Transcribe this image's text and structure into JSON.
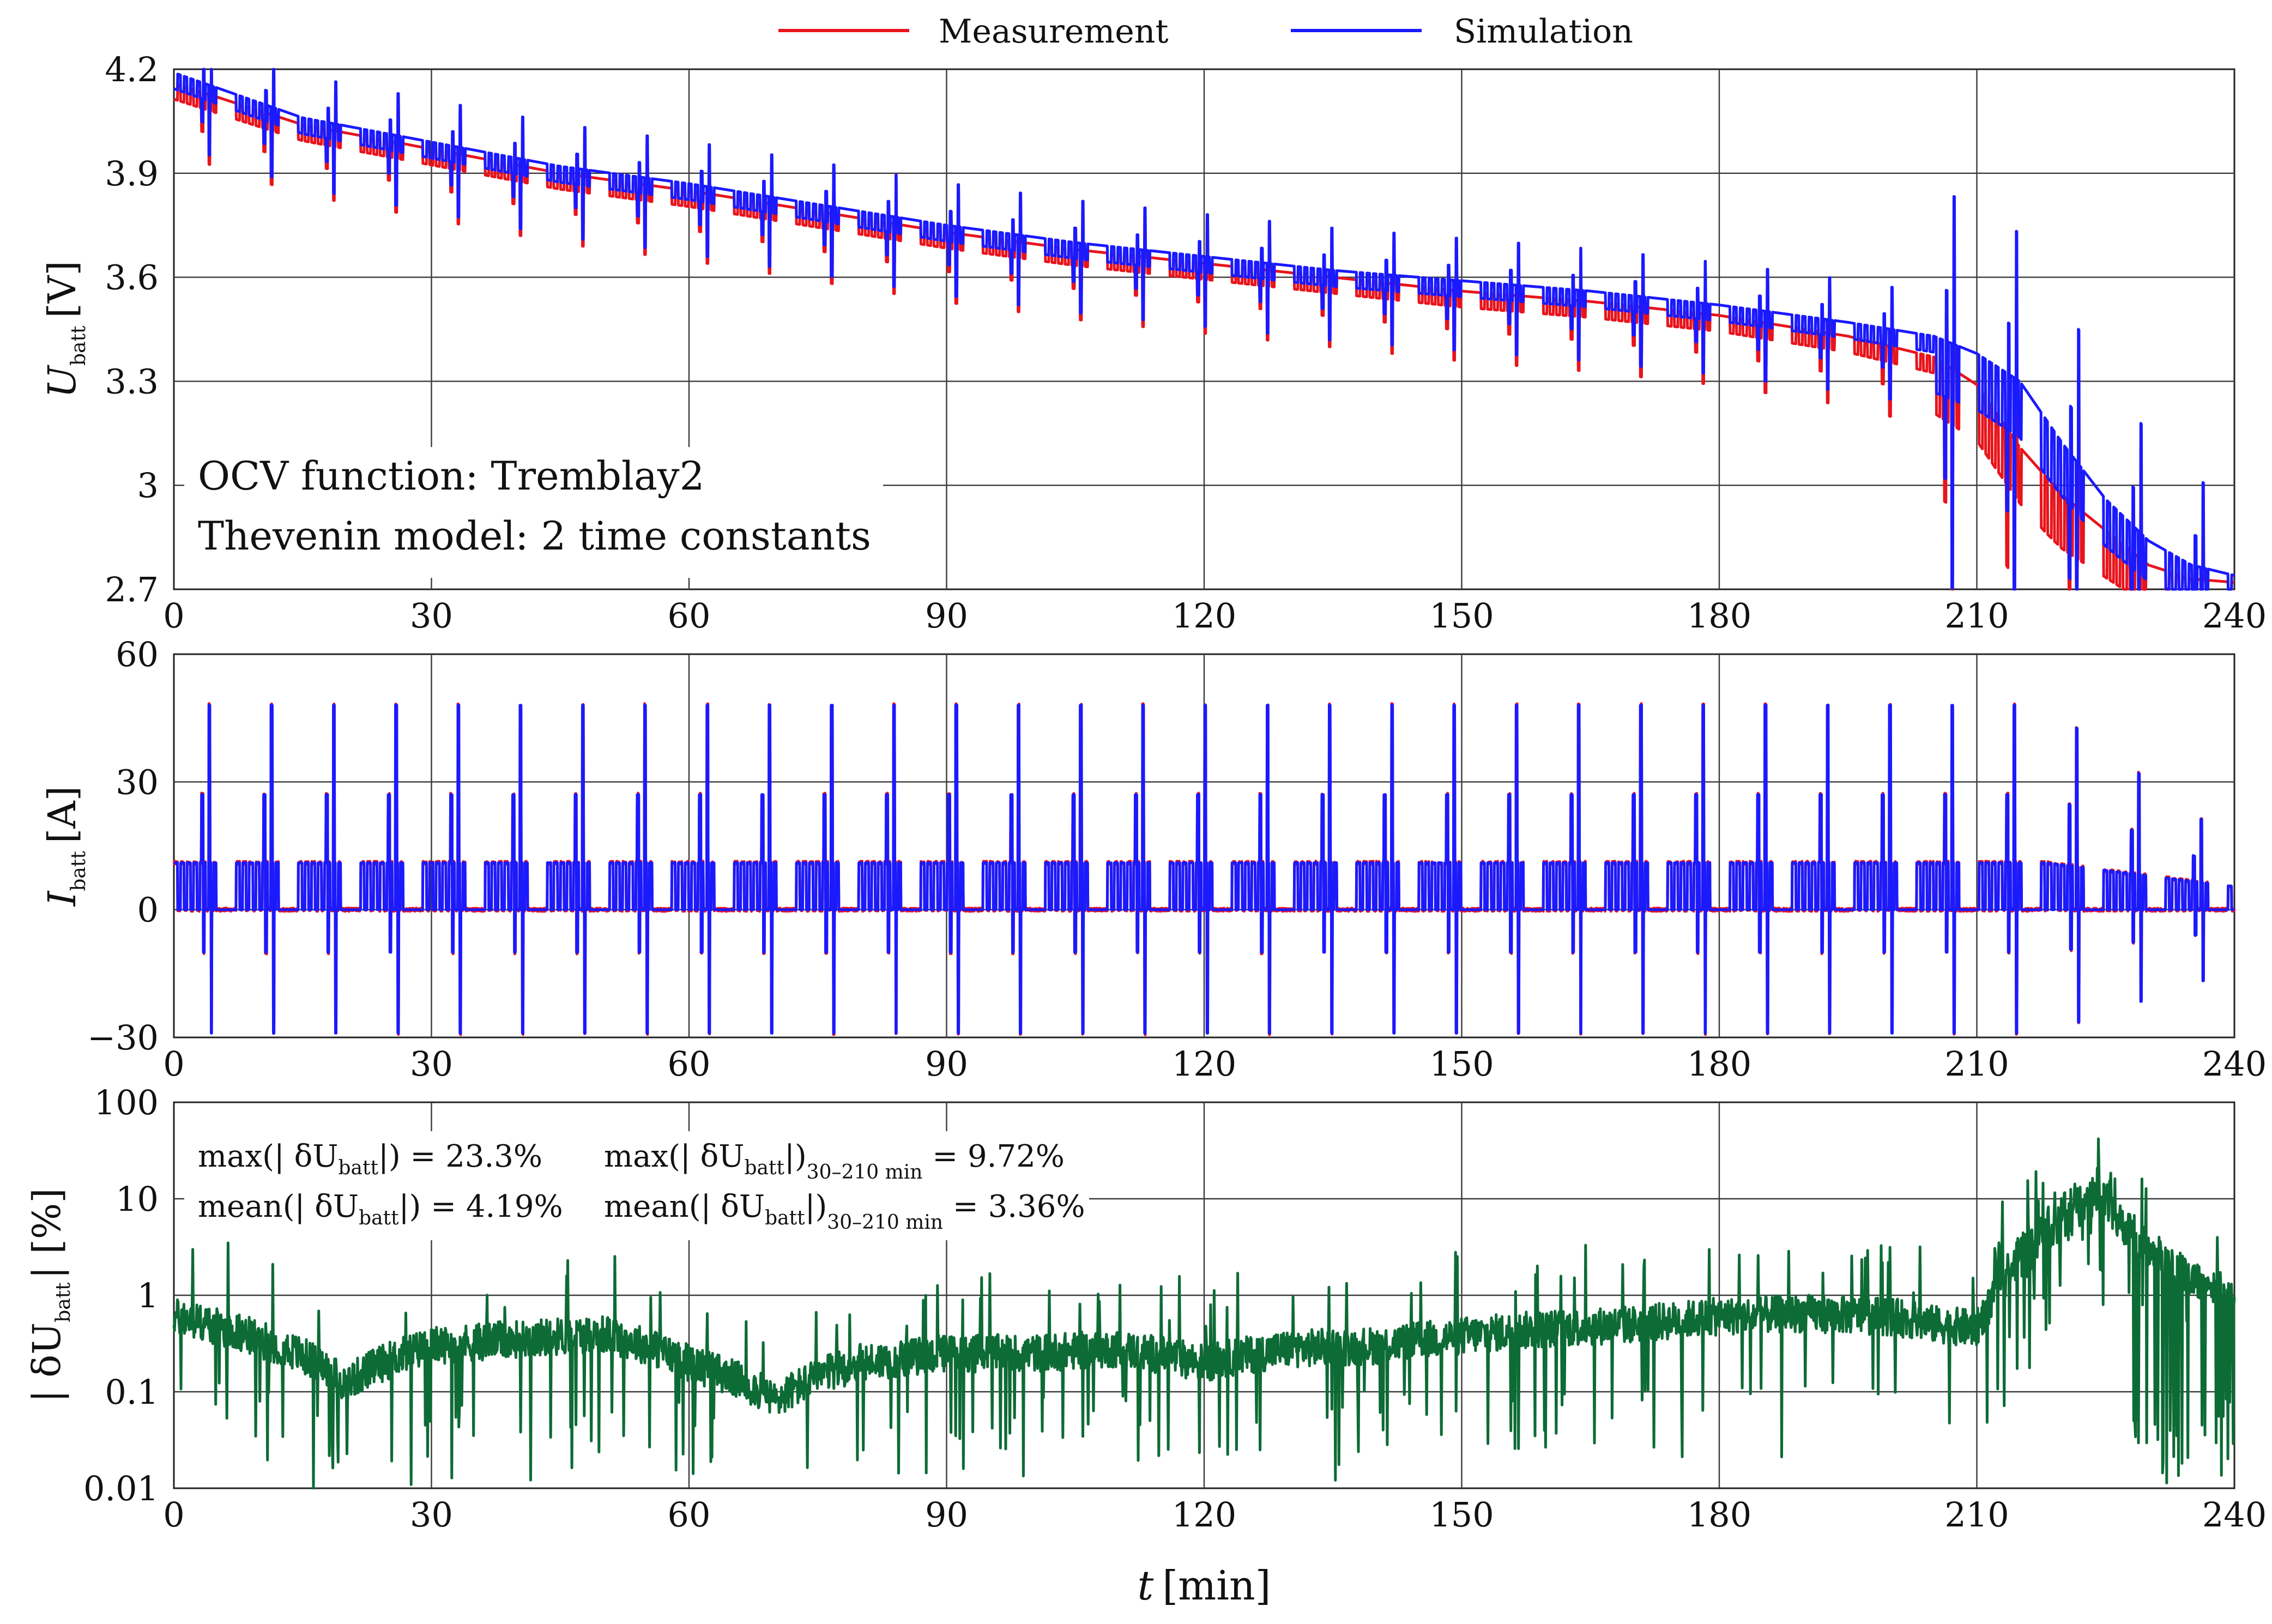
{
  "chart_data": [
    {
      "type": "line",
      "id": "voltage",
      "ylabel": "U",
      "ylabel_sub": "batt",
      "ylabel_unit": "[V]",
      "xlim": [
        0,
        240
      ],
      "ylim": [
        2.7,
        4.2
      ],
      "xticks": [
        0,
        30,
        60,
        90,
        120,
        150,
        180,
        210,
        240
      ],
      "yticks": [
        2.7,
        3,
        3.3,
        3.6,
        3.9,
        4.2
      ],
      "grid": true,
      "legend_position": "top-center",
      "annotations": [
        "OCV function: Tremblay2",
        "Thevenin model: 2 time constants"
      ],
      "series": [
        {
          "name": "Measurement",
          "color": "#e8141c",
          "x": [
            0,
            15,
            30,
            45,
            60,
            75,
            90,
            105,
            120,
            135,
            150,
            165,
            180,
            195,
            205,
            210,
            215,
            220,
            225,
            230,
            235,
            240
          ],
          "values": [
            4.17,
            4.05,
            3.98,
            3.91,
            3.86,
            3.8,
            3.74,
            3.69,
            3.65,
            3.61,
            3.57,
            3.54,
            3.5,
            3.44,
            3.38,
            3.3,
            3.12,
            2.98,
            2.88,
            2.78,
            2.74,
            2.73
          ]
        },
        {
          "name": "Simulation",
          "color": "#1a1aff",
          "x": [
            0,
            15,
            30,
            45,
            60,
            75,
            90,
            105,
            120,
            135,
            150,
            165,
            180,
            195,
            205,
            210,
            215,
            220,
            225,
            230,
            235,
            240
          ],
          "values": [
            4.19,
            4.06,
            3.99,
            3.92,
            3.87,
            3.81,
            3.75,
            3.7,
            3.66,
            3.62,
            3.59,
            3.56,
            3.52,
            3.47,
            3.43,
            3.38,
            3.3,
            3.12,
            2.96,
            2.84,
            2.77,
            2.74
          ]
        }
      ]
    },
    {
      "type": "line",
      "id": "current",
      "ylabel": "I",
      "ylabel_sub": "batt",
      "ylabel_unit": "[A]",
      "xlim": [
        0,
        240
      ],
      "ylim": [
        -30,
        60
      ],
      "xticks": [
        0,
        30,
        60,
        90,
        120,
        150,
        180,
        210,
        240
      ],
      "yticks": [
        -30,
        0,
        30,
        60
      ],
      "grid": true,
      "cycle_period_min": 7.25,
      "pulse_levels_A": {
        "base": 0,
        "low": 11,
        "peak_mid": 27,
        "peak_high": 48,
        "regen": -10,
        "regen_deep": -29
      },
      "series": [
        {
          "name": "Measurement",
          "color": "#e8141c"
        },
        {
          "name": "Simulation",
          "color": "#1a1aff"
        }
      ]
    },
    {
      "type": "line",
      "id": "error",
      "ylabel": "| δU",
      "ylabel_sub": "batt",
      "ylabel_unit": "| [%]",
      "xlabel": "t",
      "xlabel_unit": "[min]",
      "yscale": "log",
      "xlim": [
        0,
        240
      ],
      "ylim": [
        0.01,
        100
      ],
      "xticks": [
        0,
        30,
        60,
        90,
        120,
        150,
        180,
        210,
        240
      ],
      "yticks": [
        0.01,
        0.1,
        1,
        10,
        100
      ],
      "yticklabels": [
        "0.01",
        "0.1",
        "1",
        "10",
        "100"
      ],
      "grid": true,
      "stats": {
        "max_all": {
          "prefix": "max(| δU",
          "sub": "batt",
          "suffix": "|) = 23.3%"
        },
        "max_window": {
          "prefix": "max(| δU",
          "sub": "batt",
          "mid": "|)",
          "sub2": "30–210 min",
          "suffix": " = 9.72%"
        },
        "mean_all": {
          "prefix": "mean(| δU",
          "sub": "batt",
          "suffix": "|) = 4.19%"
        },
        "mean_window": {
          "prefix": "mean(| δU",
          "sub": "batt",
          "mid": "|)",
          "sub2": "30–210 min",
          "suffix": " = 3.36%"
        }
      },
      "series": [
        {
          "name": "|δU_batt|",
          "color": "#0d6b35",
          "x": [
            0,
            10,
            20,
            30,
            40,
            50,
            60,
            70,
            80,
            90,
            100,
            110,
            120,
            130,
            140,
            150,
            160,
            170,
            180,
            190,
            200,
            205,
            210,
            215,
            220,
            225,
            230,
            235,
            240
          ],
          "values": [
            0.6,
            0.35,
            0.12,
            0.3,
            0.35,
            0.4,
            0.2,
            0.08,
            0.2,
            0.25,
            0.25,
            0.28,
            0.2,
            0.28,
            0.3,
            0.38,
            0.45,
            0.5,
            0.6,
            0.65,
            0.6,
            0.5,
            0.45,
            1.6,
            4.0,
            7.0,
            3.0,
            1.5,
            1.0
          ]
        }
      ]
    }
  ],
  "legend": {
    "items": [
      {
        "label": "Measurement",
        "color": "#e8141c"
      },
      {
        "label": "Simulation",
        "color": "#1a1aff"
      }
    ]
  }
}
